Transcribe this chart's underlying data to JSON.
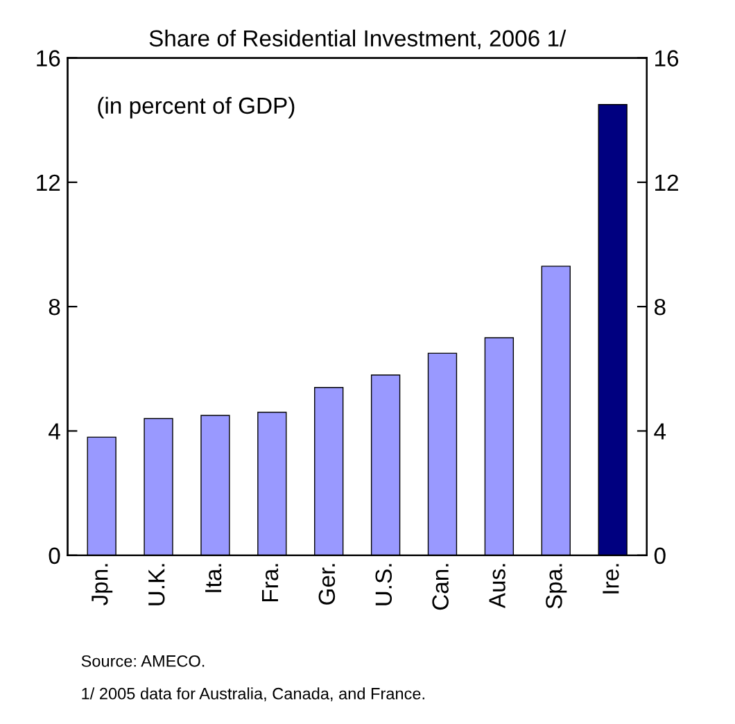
{
  "chart_data": {
    "type": "bar",
    "title": "Share of Residential Investment, 2006 1/",
    "categories": [
      "Jpn.",
      "U.K.",
      "Ita.",
      "Fra.",
      "Ger.",
      "U.S.",
      "Can.",
      "Aus.",
      "Spa.",
      "Ire."
    ],
    "values": [
      3.8,
      4.4,
      4.5,
      4.6,
      5.4,
      5.8,
      6.5,
      7.0,
      9.3,
      14.5
    ],
    "colors": [
      "#9999ff",
      "#9999ff",
      "#9999ff",
      "#9999ff",
      "#9999ff",
      "#9999ff",
      "#9999ff",
      "#9999ff",
      "#9999ff",
      "#000080"
    ],
    "ylim": [
      0,
      16
    ],
    "yticks": [
      0,
      4,
      8,
      12,
      16
    ],
    "y2lim": [
      0,
      16
    ],
    "y2ticks": [
      0,
      4,
      8,
      12,
      16
    ],
    "grid": false,
    "annotations": [
      "(in percent of GDP)",
      "Source: AMECO.",
      "1/ 2005 data for Australia, Canada, and France."
    ]
  }
}
